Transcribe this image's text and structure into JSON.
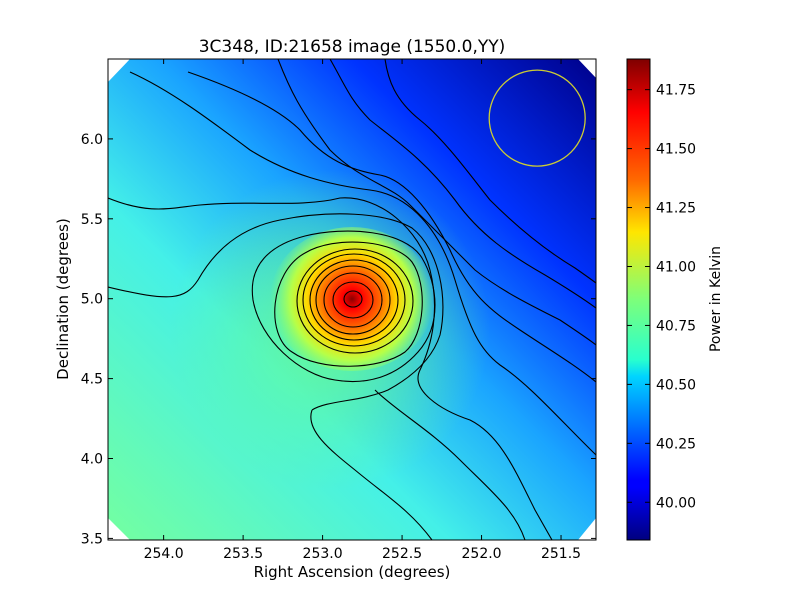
{
  "chart_data": {
    "type": "heatmap",
    "title": "3C348, ID:21658 image (1550.0,YY)",
    "xlabel": "Right Ascension (degrees)",
    "ylabel": "Declination (degrees)",
    "xlim": [
      254.35,
      251.28
    ],
    "ylim": [
      3.49,
      6.5
    ],
    "x_ticks": [
      254.0,
      253.5,
      253.0,
      252.5,
      252.0,
      251.5
    ],
    "x_tick_labels": [
      "254.0",
      "253.5",
      "253.0",
      "252.5",
      "252.0",
      "251.5"
    ],
    "y_ticks": [
      3.5,
      4.0,
      4.5,
      5.0,
      5.5,
      6.0
    ],
    "y_tick_labels": [
      "3.5",
      "4.0",
      "4.5",
      "5.0",
      "5.5",
      "6.0"
    ],
    "colorbar": {
      "label": "Power in Kelvin",
      "colormap": "jet",
      "vmin": 39.84,
      "vmax": 41.88,
      "ticks": [
        40.0,
        40.25,
        40.5,
        40.75,
        41.0,
        41.25,
        41.5,
        41.75
      ],
      "tick_labels": [
        "40.00",
        "40.25",
        "40.50",
        "40.75",
        "41.00",
        "41.25",
        "41.50",
        "41.75"
      ]
    },
    "peak": {
      "ra": 252.8,
      "dec": 5.0,
      "value": 41.88
    },
    "beam_circle": {
      "ra": 251.65,
      "dec": 6.13,
      "color": "#cccc33"
    },
    "contour_color": "#000000"
  }
}
